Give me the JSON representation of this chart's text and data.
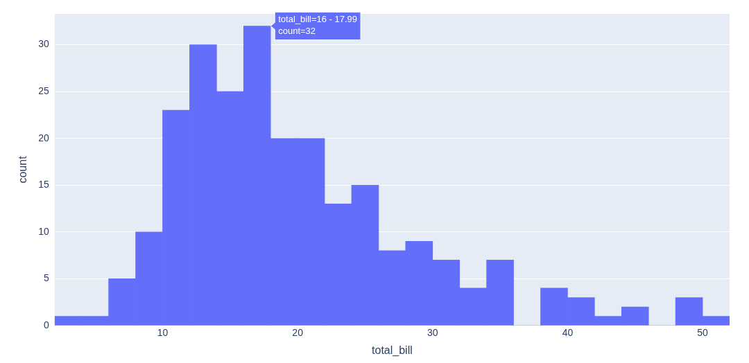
{
  "chart_data": {
    "type": "histogram",
    "xlabel": "total_bill",
    "ylabel": "count",
    "bins": [
      2,
      4,
      6,
      8,
      10,
      12,
      14,
      16,
      18,
      20,
      22,
      24,
      26,
      28,
      30,
      32,
      34,
      36,
      38,
      40,
      42,
      44,
      46,
      48,
      50,
      52
    ],
    "values": [
      1,
      1,
      5,
      10,
      23,
      30,
      25,
      32,
      20,
      20,
      13,
      15,
      8,
      9,
      7,
      4,
      7,
      0,
      4,
      3,
      1,
      2,
      0,
      3,
      1
    ],
    "color": "#636efa",
    "xlim": [
      2,
      52
    ],
    "xticks": [
      10,
      20,
      30,
      40,
      50
    ],
    "ylim": [
      0,
      33.3
    ],
    "yticks": [
      0,
      5,
      10,
      15,
      20,
      25,
      30
    ],
    "grid": "y",
    "legend": false,
    "annotations": [
      {
        "text": "total_bill=16 - 17.99\ncount=32",
        "x": 17,
        "y": 32
      }
    ]
  }
}
